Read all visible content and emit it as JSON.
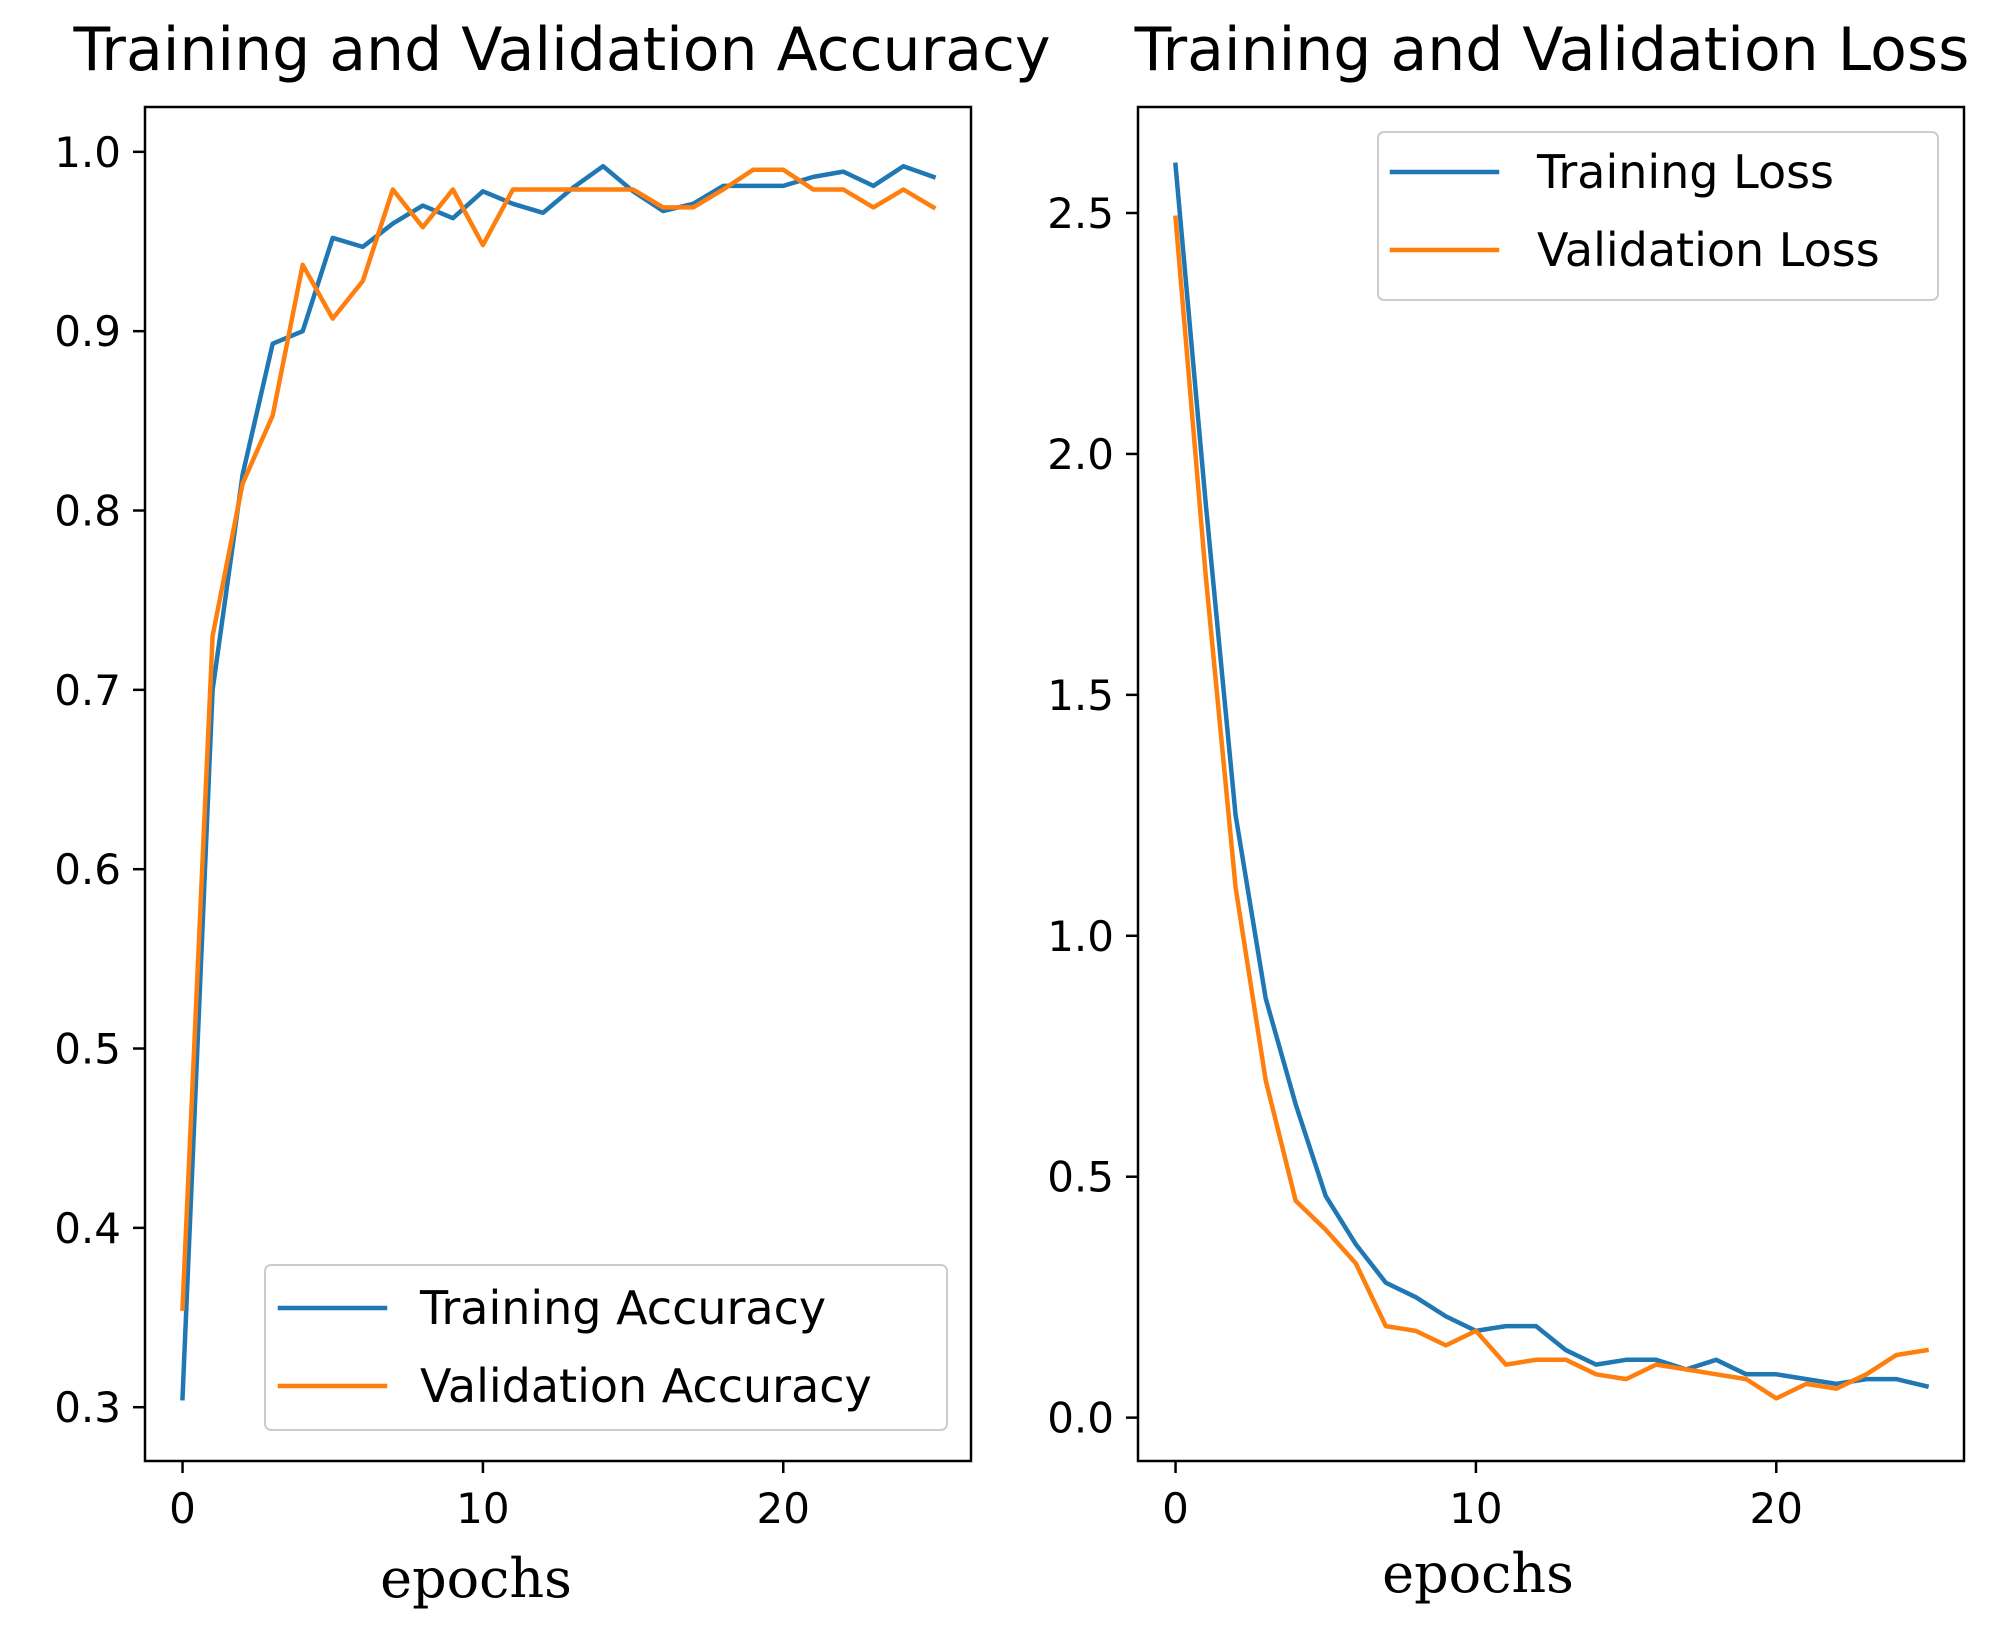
{
  "colors": {
    "training": "#1f77b4",
    "validation": "#ff7f0e"
  },
  "chart_data": [
    {
      "type": "line",
      "title": "Training and Validation Accuracy",
      "xlabel": "epochs",
      "ylabel": "",
      "xlim": [
        -1.25,
        26.25
      ],
      "ylim": [
        0.27,
        1.025
      ],
      "xticks": [
        0,
        10,
        20
      ],
      "xtick_labels": [
        "0",
        "10",
        "20"
      ],
      "yticks": [
        0.3,
        0.4,
        0.5,
        0.6,
        0.7,
        0.8,
        0.9,
        1.0
      ],
      "ytick_labels": [
        "0.3",
        "0.4",
        "0.5",
        "0.6",
        "0.7",
        "0.8",
        "0.9",
        "1.0"
      ],
      "legend_position": "lower-right",
      "x": [
        0,
        1,
        2,
        3,
        4,
        5,
        6,
        7,
        8,
        9,
        10,
        11,
        12,
        13,
        14,
        15,
        16,
        17,
        18,
        19,
        20,
        21,
        22,
        23,
        24,
        25
      ],
      "series": [
        {
          "name": "Training Accuracy",
          "color_key": "training",
          "values": [
            0.305,
            0.7,
            0.82,
            0.893,
            0.9,
            0.952,
            0.947,
            0.96,
            0.97,
            0.963,
            0.978,
            0.971,
            0.966,
            0.98,
            0.992,
            0.978,
            0.967,
            0.971,
            0.981,
            0.981,
            0.981,
            0.986,
            0.989,
            0.981,
            0.992,
            0.986
          ]
        },
        {
          "name": "Validation Accuracy",
          "color_key": "validation",
          "values": [
            0.355,
            0.73,
            0.815,
            0.853,
            0.937,
            0.907,
            0.928,
            0.979,
            0.958,
            0.979,
            0.948,
            0.979,
            0.979,
            0.979,
            0.979,
            0.979,
            0.969,
            0.969,
            0.979,
            0.99,
            0.99,
            0.979,
            0.979,
            0.969,
            0.979,
            0.969
          ]
        }
      ]
    },
    {
      "type": "line",
      "title": "Training and Validation Loss",
      "xlabel": "epochs",
      "ylabel": "",
      "xlim": [
        -1.25,
        26.25
      ],
      "ylim": [
        -0.09,
        2.72
      ],
      "xticks": [
        0,
        10,
        20
      ],
      "xtick_labels": [
        "0",
        "10",
        "20"
      ],
      "yticks": [
        0.0,
        0.5,
        1.0,
        1.5,
        2.0,
        2.5
      ],
      "ytick_labels": [
        "0.0",
        "0.5",
        "1.0",
        "1.5",
        "2.0",
        "2.5"
      ],
      "legend_position": "top-right",
      "x": [
        0,
        1,
        2,
        3,
        4,
        5,
        6,
        7,
        8,
        9,
        10,
        11,
        12,
        13,
        14,
        15,
        16,
        17,
        18,
        19,
        20,
        21,
        22,
        23,
        24,
        25
      ],
      "series": [
        {
          "name": "Training Loss",
          "color_key": "training",
          "values": [
            2.6,
            1.9,
            1.25,
            0.87,
            0.65,
            0.46,
            0.36,
            0.28,
            0.25,
            0.21,
            0.18,
            0.19,
            0.19,
            0.14,
            0.11,
            0.12,
            0.12,
            0.1,
            0.12,
            0.09,
            0.09,
            0.08,
            0.07,
            0.08,
            0.08,
            0.065
          ]
        },
        {
          "name": "Validation Loss",
          "color_key": "validation",
          "values": [
            2.49,
            1.75,
            1.1,
            0.7,
            0.45,
            0.39,
            0.32,
            0.19,
            0.18,
            0.15,
            0.18,
            0.11,
            0.12,
            0.12,
            0.09,
            0.08,
            0.11,
            0.1,
            0.09,
            0.08,
            0.04,
            0.07,
            0.06,
            0.09,
            0.13,
            0.14
          ]
        }
      ]
    }
  ]
}
